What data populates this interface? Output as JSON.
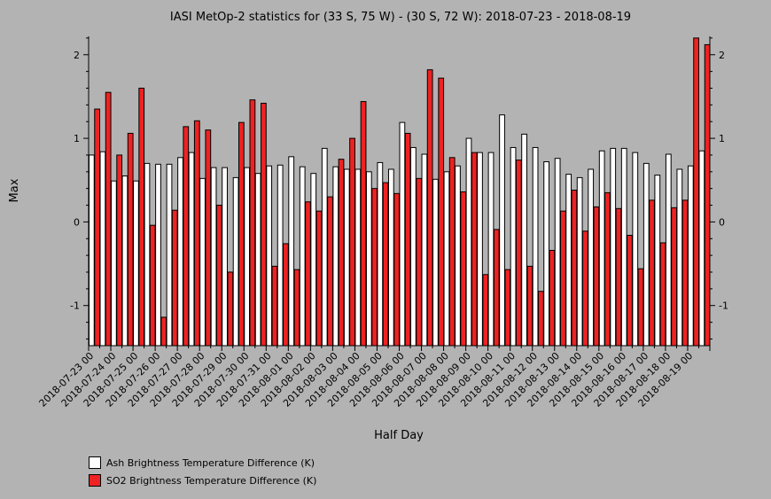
{
  "chart_data": {
    "type": "bar",
    "title": "IASI MetOp-2 statistics for (33 S, 75 W) - (30 S, 72 W): 2018-07-23 - 2018-08-19",
    "xlabel": "Half Day",
    "ylabel": "Max",
    "ylim": [
      -1.48,
      2.22
    ],
    "yticks": [
      -1,
      0,
      1,
      2
    ],
    "grid": false,
    "legend_position": "bottom-left",
    "tick_labels": [
      "2018-07-23 00",
      "2018-07-24 00",
      "2018-07-25 00",
      "2018-07-26 00",
      "2018-07-27 00",
      "2018-07-28 00",
      "2018-07-29 00",
      "2018-07-30 00",
      "2018-07-31 00",
      "2018-08-01 00",
      "2018-08-02 00",
      "2018-08-03 00",
      "2018-08-04 00",
      "2018-08-05 00",
      "2018-08-06 00",
      "2018-08-07 00",
      "2018-08-08 00",
      "2018-08-09 00",
      "2018-08-10 00",
      "2018-08-11 00",
      "2018-08-12 00",
      "2018-08-13 00",
      "2018-08-14 00",
      "2018-08-15 00",
      "2018-08-16 00",
      "2018-08-17 00",
      "2018-08-18 00",
      "2018-08-19 00"
    ],
    "series": [
      {
        "name": "Ash Brightness Temperature Difference (K)",
        "color": "#ffffff",
        "values": [
          0.8,
          0.84,
          0.49,
          0.55,
          0.49,
          0.7,
          0.69,
          0.69,
          0.77,
          0.83,
          0.52,
          0.65,
          0.65,
          0.53,
          0.65,
          0.58,
          0.67,
          0.68,
          0.78,
          0.66,
          0.58,
          0.88,
          0.66,
          0.63,
          0.63,
          0.6,
          0.71,
          0.63,
          1.19,
          0.89,
          0.81,
          0.51,
          0.6,
          0.67,
          1.0,
          0.83,
          0.83,
          1.28,
          0.89,
          1.05,
          0.89,
          0.72,
          0.76,
          0.57,
          0.53,
          0.63,
          0.85,
          0.88,
          0.88,
          0.83,
          0.7,
          0.56,
          0.81,
          0.63,
          0.67,
          0.85
        ]
      },
      {
        "name": "SO2 Brightness Temperature Difference (K)",
        "color": "#ee2222",
        "values": [
          1.35,
          1.55,
          0.8,
          1.06,
          1.6,
          -0.04,
          -1.14,
          0.14,
          1.14,
          1.21,
          1.1,
          0.2,
          -0.6,
          1.19,
          1.46,
          1.42,
          -0.53,
          -0.26,
          -0.57,
          0.24,
          0.13,
          0.3,
          0.75,
          1.0,
          1.44,
          0.4,
          0.47,
          0.34,
          1.06,
          0.52,
          1.82,
          1.72,
          0.77,
          0.36,
          0.83,
          -0.63,
          -0.09,
          -0.57,
          0.74,
          -0.53,
          -0.83,
          -0.34,
          0.13,
          0.38,
          -0.11,
          0.18,
          0.35,
          0.16,
          -0.16,
          -0.56,
          0.26,
          -0.25,
          0.17,
          0.26,
          2.2,
          2.12
        ]
      }
    ]
  }
}
